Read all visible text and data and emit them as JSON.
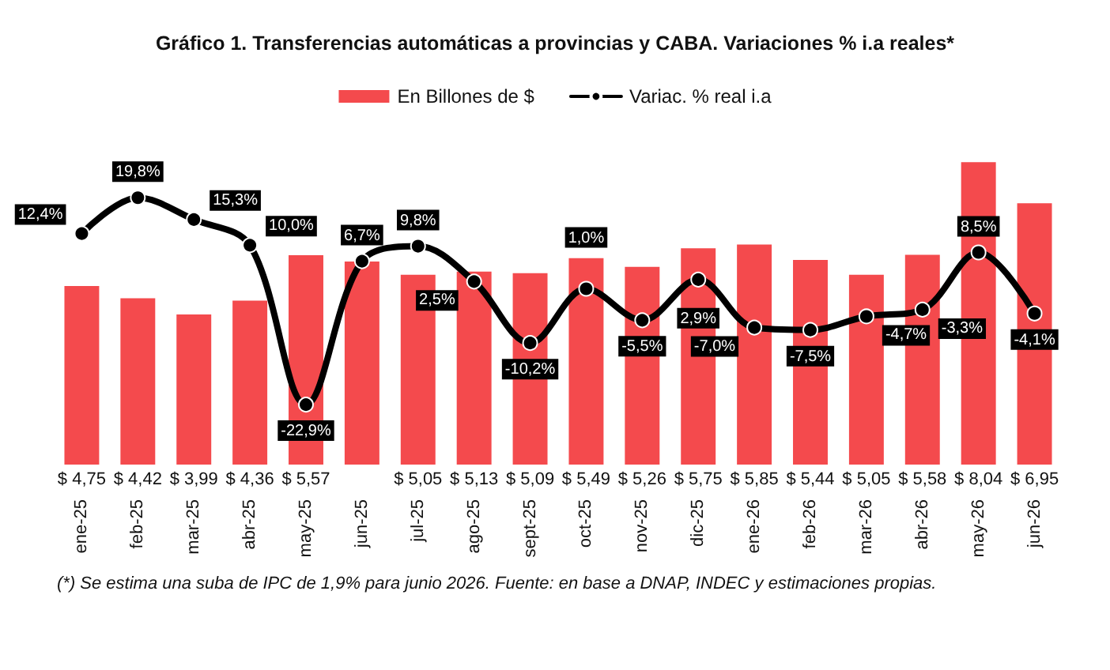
{
  "chart_data": {
    "type": "bar",
    "title": "Gráfico 1. Transferencias automáticas a provincias y CABA. Variaciones % i.a reales*",
    "categories": [
      "ene-25",
      "feb-25",
      "mar-25",
      "abr-25",
      "may-25",
      "jun-25",
      "jul-25",
      "ago-25",
      "sept-25",
      "oct-25",
      "nov-25",
      "dic-25",
      "ene-26",
      "feb-26",
      "mar-26",
      "abr-26",
      "may-26",
      "jun-26"
    ],
    "series": [
      {
        "name": "En Billones de $",
        "color": "#f44a4d",
        "values": [
          4.75,
          4.42,
          3.99,
          4.36,
          5.57,
          5.4,
          5.05,
          5.13,
          5.09,
          5.49,
          5.26,
          5.75,
          5.85,
          5.44,
          5.05,
          5.58,
          8.04,
          6.95
        ],
        "value_labels": [
          "$ 4,75",
          "$ 4,42",
          "$ 3,99",
          "$ 4,36",
          "$ 5,57",
          null,
          "$ 5,05",
          "$ 5,13",
          "$ 5,09",
          "$ 5,49",
          "$ 5,26",
          "$ 5,75",
          "$ 5,85",
          "$ 5,44",
          "$ 5,05",
          "$ 5,58",
          "$ 8,04",
          "$ 6,95"
        ]
      },
      {
        "name": "Variac. % real i.a",
        "type": "line",
        "axis": "y2",
        "color": "#000000",
        "values": [
          12.4,
          19.8,
          15.3,
          10.0,
          -22.9,
          6.7,
          9.8,
          2.5,
          -10.2,
          1.0,
          -5.5,
          2.9,
          -7.0,
          -7.5,
          -4.7,
          -3.3,
          8.5,
          -4.1
        ],
        "value_labels": [
          "12,4%",
          "19,8%",
          "15,3%",
          "10,0%",
          "-22,9%",
          "6,7%",
          "9,8%",
          "2,5%",
          "-10,2%",
          "1,0%",
          "-5,5%",
          "2,9%",
          "-7,0%",
          "-7,5%",
          "-4,7%",
          "-3,3%",
          "8,5%",
          "-4,1%"
        ]
      }
    ],
    "legend": "top",
    "tick_labels": "x",
    "marker": "circle",
    "line_style": "solid",
    "annotations": [
      "(*) Se estima una suba de IPC de 1,9% para junio 2026. Fuente: en base a DNAP, INDEC y estimaciones propias."
    ]
  }
}
